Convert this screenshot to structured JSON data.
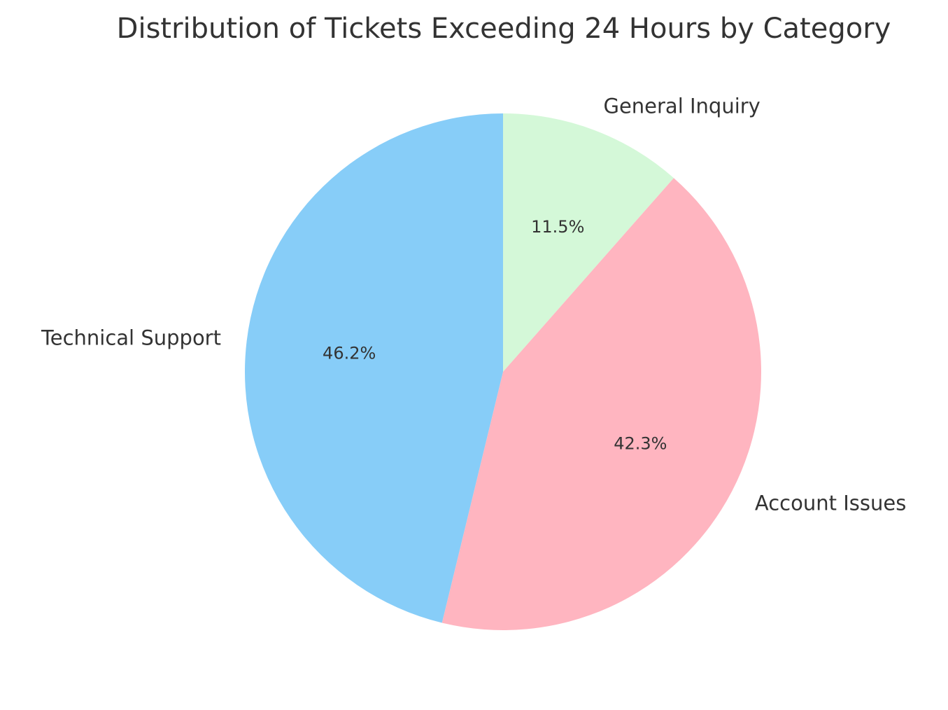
{
  "chart_data": {
    "type": "pie",
    "title": "Distribution of Tickets Exceeding 24 Hours by Category",
    "categories": [
      "General Inquiry",
      "Account Issues",
      "Technical Support"
    ],
    "values": [
      11.5,
      42.3,
      46.2
    ],
    "percent_labels": [
      "11.5%",
      "42.3%",
      "46.2%"
    ],
    "colors": [
      "#d4f8d8",
      "#ffb5c0",
      "#87cdf8"
    ],
    "start_angle_deg": 90,
    "direction": "clockwise"
  }
}
